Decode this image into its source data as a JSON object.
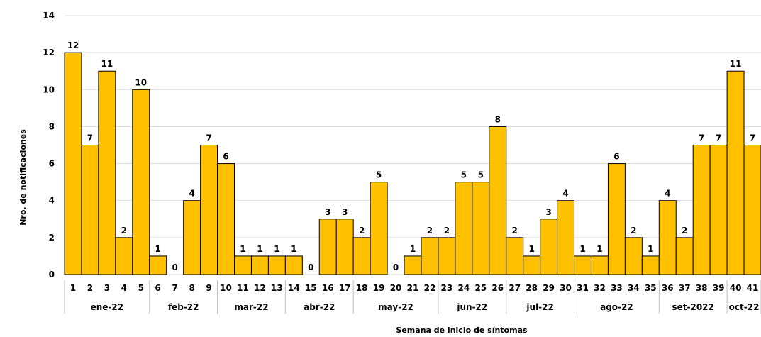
{
  "chart_data": {
    "type": "bar",
    "title": "",
    "xlabel": "Semana de inicio de síntomas",
    "ylabel": "Nro. de notificaciones",
    "ylim": [
      0,
      14
    ],
    "yticks": [
      0,
      2,
      4,
      6,
      8,
      10,
      12,
      14
    ],
    "grid": true,
    "legend": "none",
    "bar_color": "#FFC000",
    "categories": [
      "1",
      "2",
      "3",
      "4",
      "5",
      "6",
      "7",
      "8",
      "9",
      "10",
      "11",
      "12",
      "13",
      "14",
      "15",
      "16",
      "17",
      "18",
      "19",
      "20",
      "21",
      "22",
      "23",
      "24",
      "25",
      "26",
      "27",
      "28",
      "29",
      "30",
      "31",
      "32",
      "33",
      "34",
      "35",
      "36",
      "37",
      "38",
      "39",
      "40",
      "41"
    ],
    "values": [
      12,
      7,
      11,
      2,
      10,
      1,
      0,
      4,
      7,
      6,
      1,
      1,
      1,
      1,
      0,
      3,
      3,
      2,
      5,
      0,
      1,
      2,
      2,
      5,
      5,
      8,
      2,
      1,
      3,
      4,
      1,
      1,
      6,
      2,
      1,
      4,
      2,
      7,
      7,
      11,
      7
    ],
    "months": [
      {
        "label": "ene-22",
        "weeks": 5
      },
      {
        "label": "feb-22",
        "weeks": 4
      },
      {
        "label": "mar-22",
        "weeks": 4
      },
      {
        "label": "abr-22",
        "weeks": 4
      },
      {
        "label": "may-22",
        "weeks": 5
      },
      {
        "label": "jun-22",
        "weeks": 4
      },
      {
        "label": "jul-22",
        "weeks": 4
      },
      {
        "label": "ago-22",
        "weeks": 5
      },
      {
        "label": "set-2022",
        "weeks": 4
      },
      {
        "label": "oct-22",
        "weeks": 2
      }
    ]
  }
}
